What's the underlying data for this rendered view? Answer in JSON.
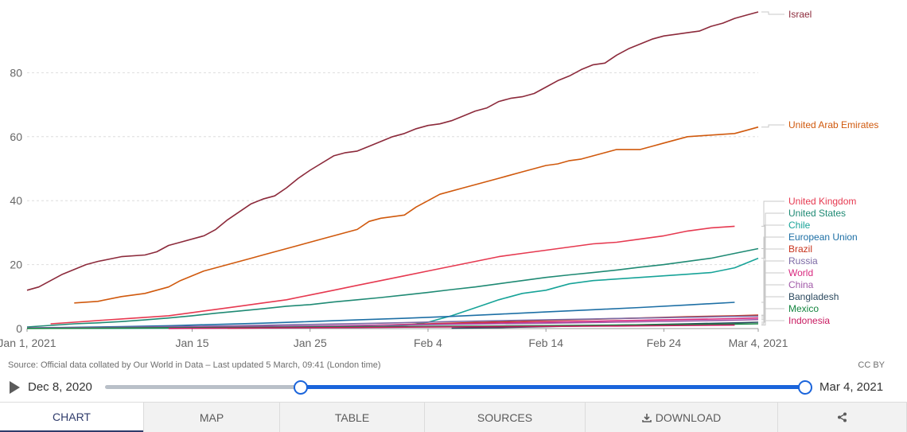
{
  "chart_data": {
    "type": "line",
    "x_tick_labels": [
      "Jan 1, 2021",
      "Jan 15",
      "Jan 25",
      "Feb 4",
      "Feb 14",
      "Feb 24",
      "Mar 4, 2021"
    ],
    "x_tick_days": [
      0,
      14,
      24,
      34,
      44,
      54,
      62
    ],
    "ylim": [
      0,
      100
    ],
    "y_ticks": [
      0,
      20,
      40,
      60,
      80
    ],
    "y_tick_labels": [
      "0",
      "20",
      "40",
      "60",
      "80"
    ],
    "grid": true,
    "legend_placement": "right-end labels",
    "series": [
      {
        "name": "Israel",
        "color": "#8c2a3b",
        "x": [
          0,
          1,
          3,
          5,
          6,
          8,
          10,
          11,
          12,
          13,
          15,
          16,
          17,
          19,
          20,
          21,
          22,
          23,
          24,
          26,
          27,
          28,
          29,
          31,
          32,
          33,
          34,
          35,
          36,
          37,
          38,
          39,
          40,
          41,
          42,
          43,
          44,
          45,
          46,
          47,
          48,
          49,
          50,
          51,
          52,
          53,
          54,
          55,
          56,
          57,
          58,
          59,
          60,
          61,
          62
        ],
        "y": [
          12,
          13,
          17,
          20,
          21,
          22.5,
          23,
          24,
          26,
          27,
          29,
          31,
          34,
          39,
          40.5,
          41.5,
          44,
          47,
          49.5,
          54,
          55,
          55.5,
          57,
          60,
          61,
          62.5,
          63.5,
          64,
          65,
          66.5,
          68,
          69,
          71,
          72,
          72.5,
          73.5,
          75.5,
          77.5,
          79,
          81,
          82.5,
          83,
          85.5,
          87.5,
          89,
          90.5,
          91.5,
          92,
          92.5,
          93,
          94.5,
          95.5,
          97,
          98,
          99
        ]
      },
      {
        "name": "United Arab Emirates",
        "color": "#d0590d",
        "x": [
          4,
          6,
          8,
          10,
          12,
          13,
          15,
          16,
          17,
          18,
          19,
          20,
          21,
          23,
          25,
          27,
          28,
          29,
          30,
          31,
          32,
          33,
          34,
          35,
          37,
          38,
          40,
          42,
          43,
          44,
          45,
          46,
          47,
          48,
          49,
          50,
          51,
          52,
          53,
          54,
          56,
          58,
          60,
          61,
          62
        ],
        "y": [
          8,
          8.5,
          10,
          11,
          13,
          15,
          18,
          19,
          20,
          21,
          22,
          23,
          24,
          26,
          28,
          30,
          31,
          33.5,
          34.5,
          35,
          35.5,
          38,
          40,
          42,
          44,
          45,
          47,
          49,
          50,
          51,
          51.5,
          52.5,
          53,
          54,
          55,
          56,
          56,
          56,
          57,
          58,
          60,
          60.5,
          61,
          62,
          63
        ]
      },
      {
        "name": "United Kingdom",
        "color": "#e63950",
        "x": [
          2,
          4,
          6,
          8,
          10,
          12,
          14,
          16,
          18,
          20,
          22,
          24,
          26,
          28,
          30,
          32,
          34,
          36,
          38,
          40,
          42,
          44,
          46,
          48,
          50,
          52,
          54,
          56,
          58,
          60
        ],
        "y": [
          1.5,
          2,
          2.5,
          3,
          3.5,
          4,
          5,
          6,
          7,
          8,
          9,
          10.5,
          12,
          13.5,
          15,
          16.5,
          18,
          19.5,
          21,
          22.5,
          23.5,
          24.5,
          25.5,
          26.5,
          27,
          28,
          29,
          30.5,
          31.5,
          32
        ]
      },
      {
        "name": "United States",
        "color": "#1f8a74",
        "x": [
          0,
          2,
          4,
          6,
          8,
          10,
          12,
          14,
          16,
          18,
          20,
          22,
          24,
          26,
          28,
          30,
          32,
          34,
          36,
          38,
          40,
          42,
          44,
          46,
          48,
          50,
          52,
          54,
          56,
          58,
          60,
          62
        ],
        "y": [
          0.5,
          1,
          1.5,
          1.8,
          2.2,
          2.7,
          3.3,
          4,
          4.8,
          5.5,
          6.2,
          7,
          7.5,
          8.3,
          9,
          9.7,
          10.5,
          11.3,
          12.2,
          13,
          14,
          15,
          16,
          16.8,
          17.5,
          18.3,
          19.2,
          20,
          21,
          22,
          23.5,
          25
        ]
      },
      {
        "name": "Chile",
        "color": "#17a398",
        "x": [
          0,
          8,
          16,
          24,
          28,
          30,
          31,
          32,
          33,
          34,
          35,
          36,
          38,
          40,
          41,
          42,
          44,
          46,
          48,
          50,
          52,
          54,
          56,
          58,
          60,
          62
        ],
        "y": [
          0.1,
          0.1,
          0.2,
          0.3,
          0.4,
          0.5,
          0.7,
          1,
          1.5,
          2,
          3,
          4,
          6.5,
          9,
          10,
          11,
          12,
          14,
          15,
          15.5,
          16,
          16.5,
          17,
          17.5,
          19,
          22
        ]
      },
      {
        "name": "European Union",
        "color": "#1d6fa5",
        "x": [
          0,
          4,
          8,
          12,
          16,
          20,
          24,
          28,
          32,
          36,
          40,
          44,
          48,
          52,
          56,
          60
        ],
        "y": [
          0.2,
          0.4,
          0.6,
          0.9,
          1.3,
          1.7,
          2.2,
          2.7,
          3.2,
          3.8,
          4.5,
          5.2,
          5.9,
          6.6,
          7.4,
          8.2
        ]
      },
      {
        "name": "Brazil",
        "color": "#c7341d",
        "x": [
          17,
          20,
          24,
          28,
          32,
          36,
          40,
          44,
          48,
          52,
          56,
          60,
          62
        ],
        "y": [
          0.1,
          0.2,
          0.5,
          0.9,
          1.3,
          1.7,
          2.1,
          2.5,
          2.9,
          3.3,
          3.7,
          4,
          4.2
        ]
      },
      {
        "name": "Russia",
        "color": "#7c6aa5",
        "x": [
          0,
          6,
          12,
          18,
          24,
          30,
          36,
          42,
          48,
          54,
          60,
          62
        ],
        "y": [
          0.1,
          0.3,
          0.6,
          0.9,
          1.3,
          1.7,
          2.2,
          2.6,
          3,
          3.4,
          3.8,
          3.9
        ]
      },
      {
        "name": "World",
        "color": "#d8287e",
        "x": [
          0,
          6,
          12,
          18,
          24,
          30,
          36,
          42,
          48,
          54,
          60,
          62
        ],
        "y": [
          0.1,
          0.2,
          0.4,
          0.6,
          0.8,
          1.1,
          1.5,
          1.9,
          2.3,
          2.7,
          3.1,
          3.3
        ]
      },
      {
        "name": "China",
        "color": "#a15aa8",
        "x": [
          0,
          10,
          20,
          30,
          40,
          50,
          60,
          62
        ],
        "y": [
          0.2,
          0.4,
          0.6,
          1,
          1.5,
          2,
          2.6,
          2.8
        ]
      },
      {
        "name": "Bangladesh",
        "color": "#2c4a5f",
        "x": [
          36,
          40,
          44,
          48,
          52,
          56,
          60,
          62
        ],
        "y": [
          0.1,
          0.3,
          0.6,
          0.9,
          1.2,
          1.5,
          1.8,
          2
        ]
      },
      {
        "name": "Mexico",
        "color": "#14853f",
        "x": [
          0,
          10,
          20,
          30,
          40,
          50,
          60,
          62
        ],
        "y": [
          0.05,
          0.2,
          0.4,
          0.6,
          0.8,
          1.1,
          1.4,
          1.5
        ]
      },
      {
        "name": "Indonesia",
        "color": "#c81a60",
        "x": [
          12,
          20,
          30,
          40,
          50,
          60
        ],
        "y": [
          0.05,
          0.2,
          0.4,
          0.6,
          0.8,
          1.1
        ]
      }
    ]
  },
  "source": {
    "text": "Source: Official data collated by Our World in Data – Last updated 5 March, 09:41 (London time)"
  },
  "license": {
    "text": "CC BY"
  },
  "timeline": {
    "start_label": "Dec 8, 2020",
    "end_label": "Mar 4, 2021",
    "selected_start_fraction": 0.28,
    "selected_end_fraction": 1.0
  },
  "tabs": [
    {
      "label": "CHART",
      "active": true
    },
    {
      "label": "MAP",
      "active": false
    },
    {
      "label": "TABLE",
      "active": false
    },
    {
      "label": "SOURCES",
      "active": false
    },
    {
      "label": "DOWNLOAD",
      "active": false
    },
    {
      "label": "",
      "active": false,
      "icon": "share-icon"
    }
  ]
}
